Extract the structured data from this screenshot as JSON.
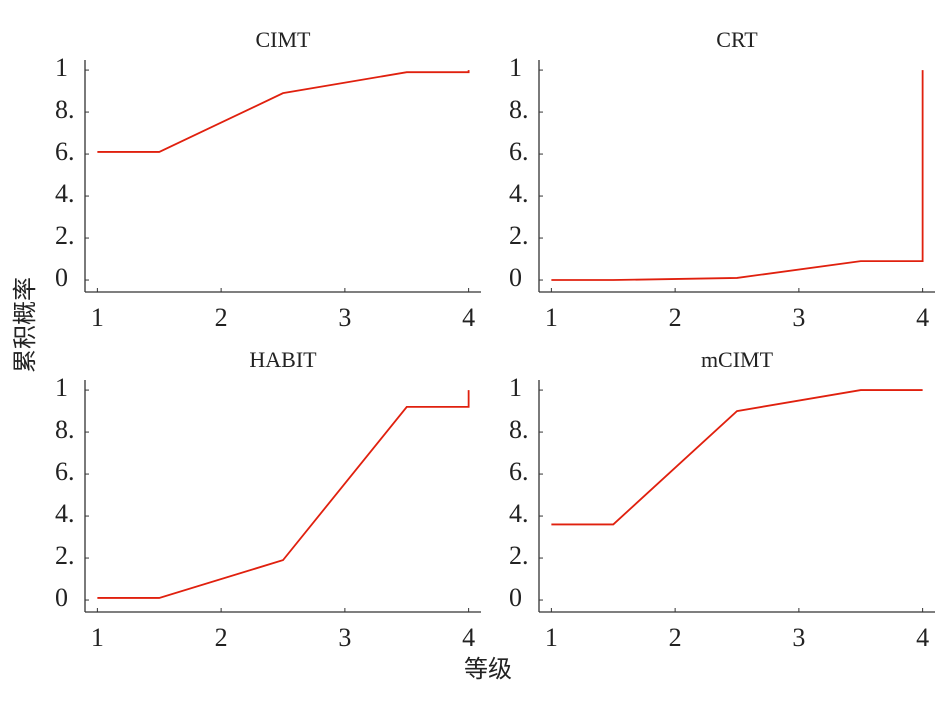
{
  "xlabel": "等级",
  "ylabel": "累积概率",
  "chart_data": [
    {
      "type": "line",
      "title": "CIMT",
      "x": [
        1,
        1.5,
        2.5,
        3.5,
        4,
        4
      ],
      "series": [
        {
          "color": "#e0200e",
          "values": [
            0.61,
            0.61,
            0.89,
            0.99,
            0.99,
            1
          ]
        }
      ],
      "xlim": [
        0.9,
        4.1
      ],
      "xticks": [
        1,
        2,
        3,
        4
      ],
      "ylim": [
        -0.057,
        1.048
      ],
      "yticks": [
        0,
        {
          "value": 0.2,
          "label": "2."
        },
        {
          "value": 0.4,
          "label": "4."
        },
        {
          "value": 0.6,
          "label": "6."
        },
        {
          "value": 0.8,
          "label": "8."
        },
        1
      ]
    },
    {
      "type": "line",
      "title": "CRT",
      "x": [
        1,
        1.5,
        2.5,
        3.5,
        4,
        4
      ],
      "series": [
        {
          "color": "#e0200e",
          "values": [
            0,
            0,
            0.01,
            0.09,
            0.09,
            1
          ]
        }
      ],
      "xlim": [
        0.9,
        4.1
      ],
      "xticks": [
        1,
        2,
        3,
        4
      ],
      "ylim": [
        -0.057,
        1.048
      ],
      "yticks": [
        0,
        {
          "value": 0.2,
          "label": "2."
        },
        {
          "value": 0.4,
          "label": "4."
        },
        {
          "value": 0.6,
          "label": "6."
        },
        {
          "value": 0.8,
          "label": "8."
        },
        1
      ]
    },
    {
      "type": "line",
      "title": "HABIT",
      "x": [
        1,
        1.5,
        2.5,
        3.5,
        4,
        4
      ],
      "series": [
        {
          "color": "#e0200e",
          "values": [
            0.01,
            0.01,
            0.19,
            0.92,
            0.92,
            1
          ]
        }
      ],
      "xlim": [
        0.9,
        4.1
      ],
      "xticks": [
        1,
        2,
        3,
        4
      ],
      "ylim": [
        -0.057,
        1.048
      ],
      "yticks": [
        0,
        {
          "value": 0.2,
          "label": "2."
        },
        {
          "value": 0.4,
          "label": "4."
        },
        {
          "value": 0.6,
          "label": "6."
        },
        {
          "value": 0.8,
          "label": "8."
        },
        1
      ]
    },
    {
      "type": "line",
      "title": "mCIMT",
      "x": [
        1,
        1.5,
        2.5,
        3.5,
        4,
        4
      ],
      "series": [
        {
          "color": "#e0200e",
          "values": [
            0.36,
            0.36,
            0.9,
            1,
            1,
            1
          ]
        }
      ],
      "xlim": [
        0.9,
        4.1
      ],
      "xticks": [
        1,
        2,
        3,
        4
      ],
      "ylim": [
        -0.057,
        1.048
      ],
      "yticks": [
        0,
        {
          "value": 0.2,
          "label": "2."
        },
        {
          "value": 0.4,
          "label": "4."
        },
        {
          "value": 0.6,
          "label": "6."
        },
        {
          "value": 0.8,
          "label": "8."
        },
        1
      ]
    }
  ]
}
